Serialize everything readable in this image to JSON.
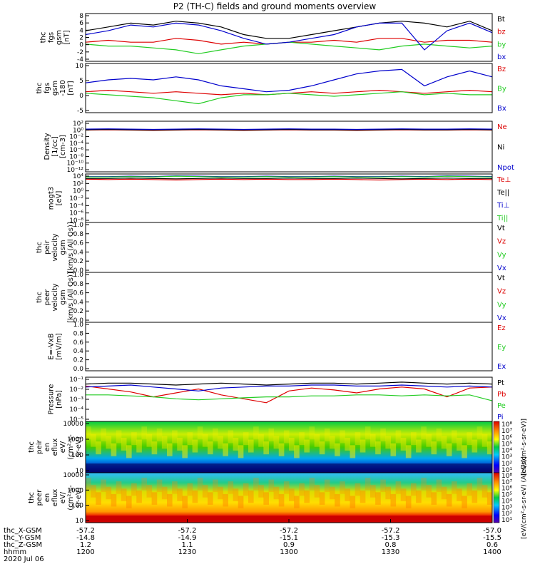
{
  "title": "P2 (TH-C) fields and ground moments overview",
  "colors": {
    "black": "#000000",
    "red": "#dd0000",
    "green": "#22cc22",
    "blue": "#0000cc"
  },
  "x_axis": {
    "tick_labels": [
      "1200",
      "1230",
      "1300",
      "1330",
      "1400"
    ],
    "rows": [
      {
        "name": "thc_X-GSM",
        "values": [
          "-57.2",
          "-57.2",
          "-57.2",
          "-57.2",
          "-57.0"
        ]
      },
      {
        "name": "thc_Y-GSM",
        "values": [
          "-14.8",
          "-14.9",
          "-15.1",
          "-15.3",
          "-15.5"
        ]
      },
      {
        "name": "thc_Z-GSM",
        "values": [
          "1.2",
          "1.1",
          "0.9",
          "0.8",
          "0.6"
        ]
      },
      {
        "name": "hhmm",
        "values": [
          "1200",
          "1230",
          "1300",
          "1330",
          "1400"
        ]
      }
    ],
    "date": "2020 Jul 06"
  },
  "chart_data": [
    {
      "id": "fgs-gsm",
      "type": "line",
      "title": "",
      "ylabel": [
        "thc",
        "fgs",
        "gsm",
        "[nT]"
      ],
      "ylim": [
        -4,
        8.5
      ],
      "yticks": [
        "8",
        "6",
        "4",
        "2",
        "0",
        "-2",
        "-4"
      ],
      "series": [
        {
          "name": "Bt",
          "color": "#000000",
          "values": [
            4,
            5,
            6,
            5.5,
            6.5,
            6,
            5,
            3,
            2,
            2,
            3,
            4,
            5,
            6,
            6.5,
            6,
            5,
            6.5,
            4
          ]
        },
        {
          "name": "bz",
          "color": "#dd0000",
          "values": [
            1,
            1.5,
            1,
            1,
            2,
            1.5,
            0.5,
            1,
            0.5,
            1,
            1,
            1.5,
            1,
            2,
            2,
            1,
            1.5,
            1.5,
            1
          ]
        },
        {
          "name": "by",
          "color": "#22cc22",
          "values": [
            0.5,
            0,
            0,
            -0.5,
            -1,
            -2,
            -1,
            0,
            0.5,
            1,
            0.5,
            0,
            -0.5,
            -1,
            0,
            0.5,
            0,
            -0.5,
            0
          ]
        },
        {
          "name": "bx",
          "color": "#0000cc",
          "values": [
            3,
            4,
            5.5,
            5,
            6,
            5.5,
            4,
            2,
            0.5,
            1,
            2,
            3,
            5,
            6,
            6,
            -1,
            4,
            6,
            3.5
          ]
        }
      ]
    },
    {
      "id": "fgs-gsm-180",
      "type": "line",
      "title": "",
      "ylabel": [
        "thc",
        "fgs",
        "gsm",
        "-180",
        "[nT]"
      ],
      "ylim": [
        -6,
        10.5
      ],
      "yticks": [
        "10",
        "5",
        "0",
        "-5"
      ],
      "series": [
        {
          "name": "Bz",
          "color": "#dd0000",
          "values": [
            1,
            1.5,
            1,
            0.5,
            1,
            0.5,
            0,
            0.5,
            0,
            0.5,
            1,
            0.5,
            1,
            1.5,
            1,
            0.5,
            1,
            1.5,
            1
          ]
        },
        {
          "name": "By",
          "color": "#22cc22",
          "values": [
            0.5,
            0,
            -0.5,
            -1,
            -2,
            -3,
            -1,
            0,
            0,
            0.5,
            0,
            -0.5,
            0,
            0.5,
            1,
            0,
            0.5,
            0,
            0
          ]
        },
        {
          "name": "Bx",
          "color": "#0000cc",
          "values": [
            4,
            5,
            5.5,
            5,
            6,
            5,
            3,
            2,
            1,
            1.5,
            3,
            5,
            7,
            8,
            8.5,
            3,
            6,
            8,
            6
          ]
        }
      ]
    },
    {
      "id": "density",
      "type": "line",
      "title": "",
      "ylabel": [
        "Density",
        "[1/cc]",
        "[cm-3]"
      ],
      "yticks": [
        "10²",
        "10⁰",
        "10⁻²",
        "10⁻⁴",
        "10⁻⁶",
        "10⁻⁸",
        "10⁻¹⁰",
        "10⁻¹²"
      ],
      "ylim_log": [
        -13,
        3
      ],
      "series": [
        {
          "name": "Ne",
          "color": "#dd0000",
          "values": [
            0.2,
            0.3,
            0.2,
            0.1,
            0.2,
            0.3,
            0.2,
            0.1,
            0.2,
            0.3,
            0.2,
            0.2,
            0.1,
            0.2,
            0.3,
            0.2,
            0.2,
            0.3,
            0.2
          ]
        },
        {
          "name": "Ni",
          "color": "#000000",
          "values": [
            0.3,
            0.4,
            0.3,
            0.2,
            0.3,
            0.4,
            0.3,
            0.2,
            0.3,
            0.4,
            0.3,
            0.3,
            0.2,
            0.3,
            0.4,
            0.3,
            0.3,
            0.4,
            0.3
          ]
        },
        {
          "name": "Npot",
          "color": "#0000cc",
          "values": [
            0.5,
            0.6,
            0.5,
            0.4,
            0.5,
            0.6,
            0.5,
            0.4,
            0.5,
            0.6,
            0.5,
            0.5,
            0.4,
            0.5,
            0.6,
            0.5,
            0.5,
            0.6,
            0.5
          ]
        }
      ]
    },
    {
      "id": "temperature",
      "type": "line",
      "title": "",
      "ylabel": [
        "mogt3",
        "[eV]"
      ],
      "yticks": [
        "10⁴",
        "10²",
        "10⁰",
        "10⁻²",
        "10⁻⁴",
        "10⁻⁶",
        "10⁻⁸"
      ],
      "ylim_log": [
        -9,
        4
      ],
      "series": [
        {
          "name": "Te⊥",
          "color": "#dd0000",
          "values": [
            2.6,
            2.5,
            2.6,
            2.5,
            2.4,
            2.5,
            2.6,
            2.5,
            2.6,
            2.5,
            2.5,
            2.6,
            2.5,
            2.4,
            2.5,
            2.6,
            2.5,
            2.6,
            2.5
          ]
        },
        {
          "name": "Te||",
          "color": "#000000",
          "values": [
            2.8,
            2.8,
            2.9,
            2.8,
            2.7,
            2.8,
            2.9,
            2.8,
            2.8,
            2.9,
            2.8,
            2.8,
            2.9,
            2.8,
            2.7,
            2.8,
            2.9,
            2.8,
            2.8
          ]
        },
        {
          "name": "Ti⊥",
          "color": "#0000cc",
          "values": [
            3.3,
            3.3,
            3.4,
            3.3,
            3.5,
            3.4,
            3.3,
            3.3,
            3.4,
            3.3,
            3.3,
            3.4,
            3.3,
            3.3,
            3.4,
            3.3,
            3.5,
            3.4,
            3.3
          ]
        },
        {
          "name": "Ti||",
          "color": "#22cc22",
          "values": [
            3.2,
            3.2,
            3.3,
            3.2,
            3.4,
            3.3,
            3.2,
            3.2,
            3.3,
            3.2,
            3.2,
            3.3,
            3.2,
            3.2,
            3.3,
            3.2,
            3.4,
            3.3,
            3.2
          ]
        }
      ]
    },
    {
      "id": "peir-velocity",
      "type": "line",
      "title": "",
      "ylabel": [
        "thc",
        "peir",
        "velocity",
        "gsm",
        "[km/s (All Qs)]"
      ],
      "ylim": [
        0,
        1
      ],
      "yticks": [
        "1.0",
        "0.8",
        "0.6",
        "0.4",
        "0.2",
        "0.0"
      ],
      "series": [
        {
          "name": "Vt",
          "color": "#000000",
          "values": []
        },
        {
          "name": "Vz",
          "color": "#dd0000",
          "values": []
        },
        {
          "name": "Vy",
          "color": "#22cc22",
          "values": []
        },
        {
          "name": "Vx",
          "color": "#0000cc",
          "values": []
        }
      ]
    },
    {
      "id": "peer-velocity",
      "type": "line",
      "title": "",
      "ylabel": [
        "thc",
        "peer",
        "velocity",
        "gsm",
        "[km/s (All Qs)]"
      ],
      "ylim": [
        0,
        1
      ],
      "yticks": [
        "1.0",
        "0.8",
        "0.6",
        "0.4",
        "0.2",
        "0.0"
      ],
      "series": [
        {
          "name": "Vt",
          "color": "#000000",
          "values": []
        },
        {
          "name": "Vz",
          "color": "#dd0000",
          "values": []
        },
        {
          "name": "Vy",
          "color": "#22cc22",
          "values": []
        },
        {
          "name": "Vx",
          "color": "#0000cc",
          "values": []
        }
      ]
    },
    {
      "id": "efield",
      "type": "line",
      "title": "",
      "ylabel": [
        "E=-VxB",
        "[mV/m]"
      ],
      "ylim": [
        0,
        1
      ],
      "yticks": [
        "1.0",
        "0.8",
        "0.6",
        "0.4",
        "0.2",
        "0.0"
      ],
      "series": [
        {
          "name": "Ez",
          "color": "#dd0000",
          "values": []
        },
        {
          "name": "Ey",
          "color": "#22cc22",
          "values": []
        },
        {
          "name": "Ex",
          "color": "#0000cc",
          "values": []
        }
      ]
    },
    {
      "id": "pressure",
      "type": "line",
      "title": "",
      "ylabel": [
        "Pressure",
        "[nPa]"
      ],
      "yticks": [
        "10⁻¹",
        "10⁻²",
        "10⁻³",
        "10⁻⁴",
        "10⁻⁵"
      ],
      "ylim_log": [
        -5.5,
        -1
      ],
      "series": [
        {
          "name": "Pt",
          "color": "#000000",
          "values": [
            -1.7,
            -1.6,
            -1.6,
            -1.7,
            -1.8,
            -1.7,
            -1.6,
            -1.7,
            -1.8,
            -1.7,
            -1.6,
            -1.6,
            -1.7,
            -1.6,
            -1.5,
            -1.6,
            -1.7,
            -1.6,
            -1.7
          ]
        },
        {
          "name": "Pb",
          "color": "#dd0000",
          "values": [
            -1.9,
            -2.2,
            -2.5,
            -3,
            -2.6,
            -2.2,
            -2.8,
            -3.2,
            -3.6,
            -2.4,
            -2.1,
            -2.3,
            -2.6,
            -2.2,
            -2,
            -2.2,
            -3,
            -2.1,
            -2
          ]
        },
        {
          "name": "Pe",
          "color": "#22cc22",
          "values": [
            -2.8,
            -2.8,
            -2.9,
            -3,
            -3.2,
            -3.3,
            -3.2,
            -3.1,
            -3,
            -3,
            -2.9,
            -2.9,
            -2.8,
            -2.8,
            -2.9,
            -2.8,
            -2.9,
            -2.8,
            -3.4
          ]
        },
        {
          "name": "Pi",
          "color": "#0000cc",
          "values": [
            -2,
            -1.9,
            -1.8,
            -2,
            -2.2,
            -2.4,
            -2.1,
            -2,
            -1.9,
            -1.9,
            -1.8,
            -1.8,
            -1.9,
            -1.9,
            -1.8,
            -1.9,
            -2,
            -1.9,
            -2
          ]
        }
      ]
    },
    {
      "id": "peir-eflux",
      "type": "heatmap",
      "title": "",
      "ylabel": [
        "thc",
        "peir",
        "en",
        "eflux",
        "eV/",
        "(cm²-s-",
        "sr-eV)"
      ],
      "yticks": [
        "10000",
        "1000",
        "100",
        "10"
      ],
      "colorbar": {
        "label": "[eV/(cm²-s-sr-eV)]",
        "ticks": [
          "10⁸",
          "10⁷",
          "10⁶",
          "10⁵",
          "10⁴",
          "10³",
          "10²",
          "10¹"
        ]
      }
    },
    {
      "id": "peer-eflux",
      "type": "heatmap",
      "title": "",
      "ylabel": [
        "thc",
        "peer",
        "en",
        "eflux",
        "eV/",
        "(cm²-s-",
        "sr-eV)"
      ],
      "yticks": [
        "10000",
        "1000",
        "100",
        "10"
      ],
      "colorbar": {
        "label": "[eV/(cm²-s-sr-eV) (All Qs)]",
        "ticks": [
          "10⁸",
          "10⁷",
          "10⁶",
          "10⁵",
          "10⁴",
          "10³",
          "10²",
          "10¹"
        ]
      }
    }
  ]
}
